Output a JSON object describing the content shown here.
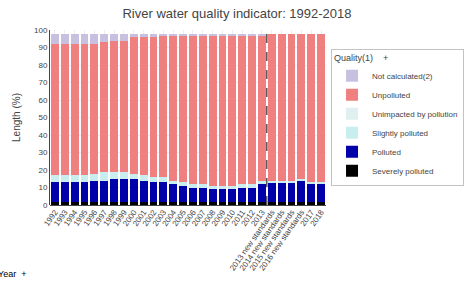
{
  "chart_data": {
    "type": "bar",
    "stacked": true,
    "title": "River water quality indicator: 1992-2018",
    "ylabel": "Length (%)",
    "categories": [
      "1992",
      "1993",
      "1994",
      "1995",
      "1996",
      "1997",
      "1998",
      "1999",
      "2000",
      "2001",
      "2002",
      "2003",
      "2004",
      "2005",
      "2006",
      "2007",
      "2008",
      "2009",
      "2010",
      "2011",
      "2012",
      "2013",
      "2013 new standards",
      "2014 new standards",
      "2015 new standards",
      "2016 new standards",
      "2017",
      "2018"
    ],
    "series": [
      {
        "name": "Severely polluted",
        "color": "#000000",
        "values": [
          2,
          2,
          2,
          2,
          2,
          2,
          2,
          2,
          2,
          2,
          2,
          2,
          2,
          2,
          2,
          2,
          2,
          2,
          2,
          2,
          2,
          2,
          2,
          2,
          2,
          2,
          2,
          2
        ]
      },
      {
        "name": "Polluted",
        "color": "#0000aa",
        "values": [
          11,
          11,
          11,
          11,
          12,
          12,
          13,
          13,
          13,
          12,
          11,
          11,
          10,
          9,
          8,
          8,
          7,
          7,
          7,
          8,
          8,
          10,
          11,
          11,
          11,
          12,
          10,
          10
        ]
      },
      {
        "name": "Slightly polluted",
        "color": "#c8eef0",
        "values": [
          4,
          4,
          4,
          4,
          4,
          5,
          4,
          4,
          3,
          3,
          3,
          3,
          2,
          2,
          2,
          2,
          2,
          2,
          2,
          2,
          2,
          2,
          1,
          1,
          1,
          1,
          1,
          1
        ]
      },
      {
        "name": "Unimpacted by pollution",
        "color": "#e0f0f0",
        "values": [
          0,
          0,
          0,
          0,
          0,
          0,
          0,
          0,
          0,
          0,
          0,
          0,
          0,
          0,
          0,
          0,
          0,
          0,
          0,
          0,
          0,
          0,
          0,
          0,
          0,
          0,
          0,
          0
        ]
      },
      {
        "name": "Unpolluted",
        "color": "#f08080",
        "values": [
          75,
          75,
          75,
          75,
          74,
          74,
          75,
          75,
          78,
          79,
          80,
          81,
          83,
          84,
          85,
          85,
          86,
          86,
          86,
          85,
          85,
          83,
          84,
          84,
          84,
          83,
          85,
          85
        ]
      },
      {
        "name": "Not calculated(2)",
        "color": "#c8c0e0",
        "values": [
          6,
          6,
          6,
          6,
          6,
          5,
          4,
          4,
          2,
          2,
          2,
          1,
          1,
          1,
          1,
          1,
          1,
          1,
          1,
          1,
          1,
          1,
          0,
          0,
          0,
          0,
          0,
          0
        ]
      }
    ],
    "legend_title": "Quality(1)    +",
    "legend": "right",
    "ylim": [
      0,
      100
    ],
    "yticks": [
      0,
      10,
      20,
      30,
      40,
      50,
      60,
      70,
      80,
      90,
      100
    ],
    "grid": true,
    "reference_lines": [
      {
        "x": 21.5,
        "line_style": "dashed",
        "color": "#000000"
      }
    ],
    "annotations": [
      {
        "text": "Year  +"
      }
    ]
  }
}
